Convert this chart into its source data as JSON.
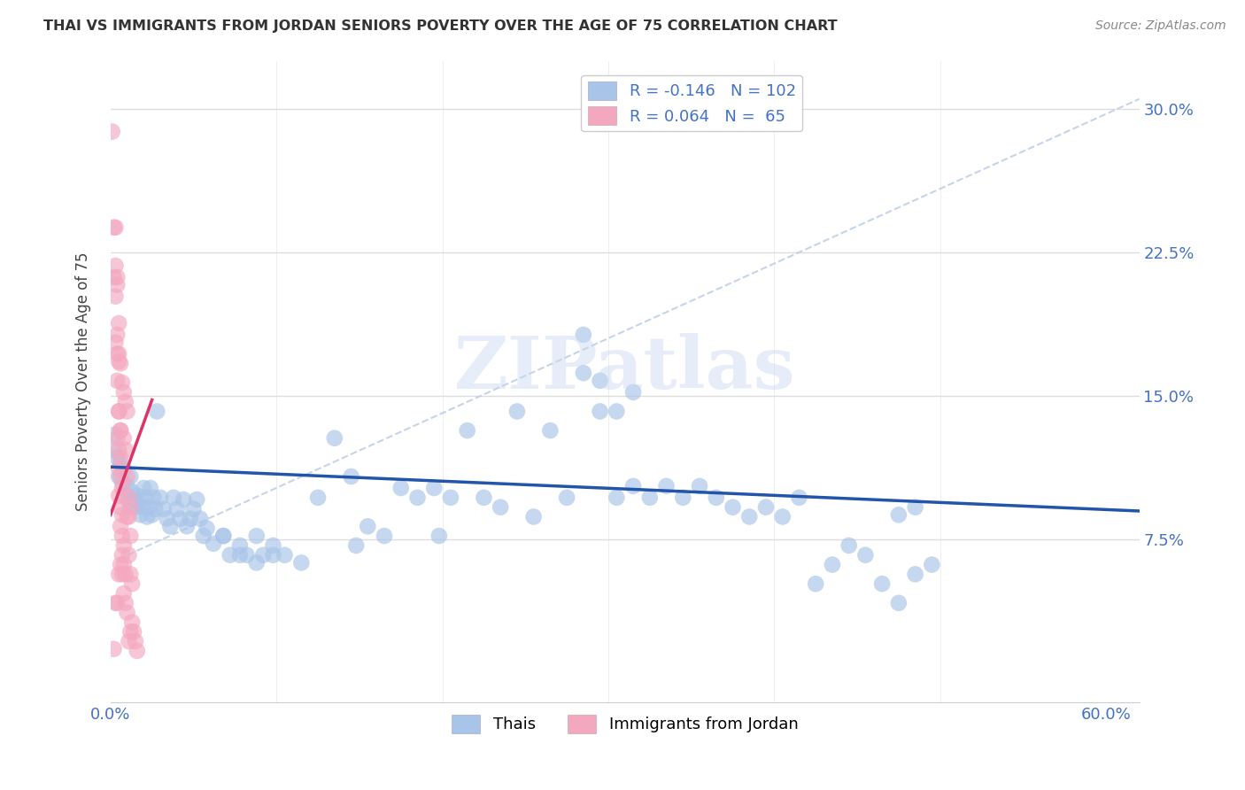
{
  "title": "THAI VS IMMIGRANTS FROM JORDAN SENIORS POVERTY OVER THE AGE OF 75 CORRELATION CHART",
  "source": "Source: ZipAtlas.com",
  "ylabel": "Seniors Poverty Over the Age of 75",
  "xlim": [
    0.0,
    0.62
  ],
  "ylim": [
    -0.01,
    0.325
  ],
  "legend_blue_r": "-0.146",
  "legend_blue_n": "102",
  "legend_pink_r": "0.064",
  "legend_pink_n": "65",
  "blue_color": "#a8c4e8",
  "pink_color": "#f4a8c0",
  "blue_line_color": "#2255aa",
  "pink_line_color": "#dd3366",
  "diag_color": "#c0d0e8",
  "watermark": "ZIPatlas",
  "blue_scatter": [
    [
      0.002,
      0.122
    ],
    [
      0.003,
      0.13
    ],
    [
      0.004,
      0.118
    ],
    [
      0.005,
      0.108
    ],
    [
      0.006,
      0.115
    ],
    [
      0.007,
      0.105
    ],
    [
      0.008,
      0.112
    ],
    [
      0.009,
      0.098
    ],
    [
      0.01,
      0.103
    ],
    [
      0.011,
      0.095
    ],
    [
      0.012,
      0.108
    ],
    [
      0.013,
      0.1
    ],
    [
      0.014,
      0.096
    ],
    [
      0.015,
      0.092
    ],
    [
      0.016,
      0.098
    ],
    [
      0.017,
      0.094
    ],
    [
      0.018,
      0.088
    ],
    [
      0.019,
      0.092
    ],
    [
      0.02,
      0.102
    ],
    [
      0.021,
      0.097
    ],
    [
      0.022,
      0.087
    ],
    [
      0.023,
      0.092
    ],
    [
      0.024,
      0.102
    ],
    [
      0.025,
      0.088
    ],
    [
      0.026,
      0.097
    ],
    [
      0.027,
      0.091
    ],
    [
      0.028,
      0.142
    ],
    [
      0.03,
      0.097
    ],
    [
      0.032,
      0.091
    ],
    [
      0.034,
      0.086
    ],
    [
      0.036,
      0.082
    ],
    [
      0.038,
      0.097
    ],
    [
      0.04,
      0.091
    ],
    [
      0.042,
      0.086
    ],
    [
      0.044,
      0.096
    ],
    [
      0.046,
      0.082
    ],
    [
      0.048,
      0.086
    ],
    [
      0.05,
      0.091
    ],
    [
      0.052,
      0.096
    ],
    [
      0.054,
      0.086
    ],
    [
      0.056,
      0.077
    ],
    [
      0.058,
      0.081
    ],
    [
      0.062,
      0.073
    ],
    [
      0.068,
      0.077
    ],
    [
      0.072,
      0.067
    ],
    [
      0.078,
      0.072
    ],
    [
      0.082,
      0.067
    ],
    [
      0.088,
      0.063
    ],
    [
      0.092,
      0.067
    ],
    [
      0.098,
      0.072
    ],
    [
      0.105,
      0.067
    ],
    [
      0.115,
      0.063
    ],
    [
      0.125,
      0.097
    ],
    [
      0.135,
      0.128
    ],
    [
      0.145,
      0.108
    ],
    [
      0.155,
      0.082
    ],
    [
      0.165,
      0.077
    ],
    [
      0.175,
      0.102
    ],
    [
      0.185,
      0.097
    ],
    [
      0.195,
      0.102
    ],
    [
      0.205,
      0.097
    ],
    [
      0.215,
      0.132
    ],
    [
      0.225,
      0.097
    ],
    [
      0.235,
      0.092
    ],
    [
      0.245,
      0.142
    ],
    [
      0.255,
      0.087
    ],
    [
      0.265,
      0.132
    ],
    [
      0.275,
      0.097
    ],
    [
      0.285,
      0.162
    ],
    [
      0.295,
      0.142
    ],
    [
      0.305,
      0.097
    ],
    [
      0.315,
      0.103
    ],
    [
      0.325,
      0.097
    ],
    [
      0.335,
      0.103
    ],
    [
      0.345,
      0.097
    ],
    [
      0.355,
      0.103
    ],
    [
      0.365,
      0.097
    ],
    [
      0.375,
      0.092
    ],
    [
      0.385,
      0.087
    ],
    [
      0.395,
      0.092
    ],
    [
      0.405,
      0.087
    ],
    [
      0.415,
      0.097
    ],
    [
      0.425,
      0.052
    ],
    [
      0.435,
      0.062
    ],
    [
      0.445,
      0.072
    ],
    [
      0.455,
      0.067
    ],
    [
      0.465,
      0.052
    ],
    [
      0.475,
      0.042
    ],
    [
      0.485,
      0.057
    ],
    [
      0.495,
      0.062
    ],
    [
      0.285,
      0.182
    ],
    [
      0.295,
      0.158
    ],
    [
      0.305,
      0.142
    ],
    [
      0.315,
      0.152
    ],
    [
      0.475,
      0.088
    ],
    [
      0.485,
      0.092
    ],
    [
      0.068,
      0.077
    ],
    [
      0.078,
      0.067
    ],
    [
      0.088,
      0.077
    ],
    [
      0.098,
      0.067
    ],
    [
      0.148,
      0.072
    ],
    [
      0.198,
      0.077
    ]
  ],
  "pink_scatter": [
    [
      0.001,
      0.288
    ],
    [
      0.002,
      0.238
    ],
    [
      0.003,
      0.238
    ],
    [
      0.002,
      0.212
    ],
    [
      0.003,
      0.218
    ],
    [
      0.004,
      0.212
    ],
    [
      0.003,
      0.202
    ],
    [
      0.004,
      0.208
    ],
    [
      0.005,
      0.188
    ],
    [
      0.003,
      0.178
    ],
    [
      0.004,
      0.172
    ],
    [
      0.005,
      0.168
    ],
    [
      0.004,
      0.158
    ],
    [
      0.005,
      0.142
    ],
    [
      0.006,
      0.132
    ],
    [
      0.004,
      0.128
    ],
    [
      0.005,
      0.122
    ],
    [
      0.006,
      0.118
    ],
    [
      0.005,
      0.112
    ],
    [
      0.006,
      0.108
    ],
    [
      0.007,
      0.102
    ],
    [
      0.005,
      0.098
    ],
    [
      0.006,
      0.092
    ],
    [
      0.007,
      0.088
    ],
    [
      0.006,
      0.082
    ],
    [
      0.007,
      0.077
    ],
    [
      0.008,
      0.072
    ],
    [
      0.007,
      0.067
    ],
    [
      0.008,
      0.062
    ],
    [
      0.009,
      0.057
    ],
    [
      0.004,
      0.182
    ],
    [
      0.005,
      0.172
    ],
    [
      0.006,
      0.167
    ],
    [
      0.007,
      0.157
    ],
    [
      0.008,
      0.152
    ],
    [
      0.009,
      0.147
    ],
    [
      0.01,
      0.142
    ],
    [
      0.008,
      0.128
    ],
    [
      0.009,
      0.122
    ],
    [
      0.01,
      0.108
    ],
    [
      0.011,
      0.097
    ],
    [
      0.012,
      0.092
    ],
    [
      0.01,
      0.087
    ],
    [
      0.011,
      0.087
    ],
    [
      0.012,
      0.077
    ],
    [
      0.011,
      0.067
    ],
    [
      0.012,
      0.057
    ],
    [
      0.013,
      0.052
    ],
    [
      0.003,
      0.042
    ],
    [
      0.004,
      0.042
    ],
    [
      0.005,
      0.057
    ],
    [
      0.006,
      0.062
    ],
    [
      0.007,
      0.057
    ],
    [
      0.008,
      0.047
    ],
    [
      0.009,
      0.042
    ],
    [
      0.01,
      0.037
    ],
    [
      0.011,
      0.022
    ],
    [
      0.012,
      0.027
    ],
    [
      0.013,
      0.032
    ],
    [
      0.014,
      0.027
    ],
    [
      0.015,
      0.022
    ],
    [
      0.016,
      0.017
    ],
    [
      0.005,
      0.142
    ],
    [
      0.006,
      0.132
    ],
    [
      0.002,
      0.018
    ]
  ]
}
